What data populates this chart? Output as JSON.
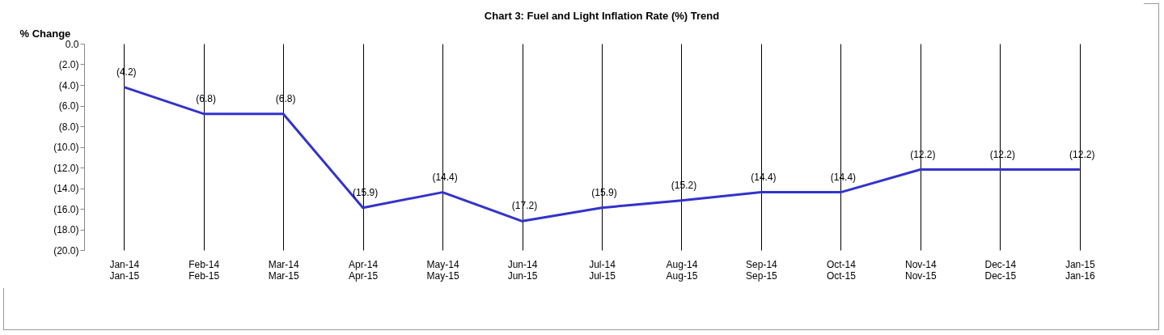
{
  "chart_data": {
    "type": "line",
    "title": "Chart 3: Fuel and Light Inflation Rate (%) Trend",
    "ylabel": "% Change",
    "categories": [
      "Jan-14\nJan-15",
      "Feb-14\nFeb-15",
      "Mar-14\nMar-15",
      "Apr-14\nApr-15",
      "May-14\nMay-15",
      "Jun-14\nJun-15",
      "Jul-14\nJul-15",
      "Aug-14\nAug-15",
      "Sep-14\nSep-15",
      "Oct-14\nOct-15",
      "Nov-14\nNov-15",
      "Dec-14\nDec-15",
      "Jan-15\nJan-16"
    ],
    "series": [
      {
        "color": "#3333cc",
        "values": [
          -4.2,
          -6.8,
          -6.8,
          -15.9,
          -14.4,
          -17.2,
          -15.9,
          -15.2,
          -14.4,
          -14.4,
          -12.2,
          -12.2,
          -12.2
        ],
        "value_labels": [
          "(4.2)",
          "(6.8)",
          "(6.8)",
          "(15.9)",
          "(14.4)",
          "(17.2)",
          "(15.9)",
          "(15.2)",
          "(14.4)",
          "(14.4)",
          "(12.2)",
          "(12.2)",
          "(12.2)"
        ]
      }
    ],
    "ylim": [
      -20,
      0
    ],
    "yticks": [
      {
        "value": 0,
        "label": "0.0"
      },
      {
        "value": -2,
        "label": "(2.0)"
      },
      {
        "value": -4,
        "label": "(4.0)"
      },
      {
        "value": -6,
        "label": "(6.0)"
      },
      {
        "value": -8,
        "label": "(8.0)"
      },
      {
        "value": -10,
        "label": "(10.0)"
      },
      {
        "value": -12,
        "label": "(12.0)"
      },
      {
        "value": -14,
        "label": "(14.0)"
      },
      {
        "value": -16,
        "label": "(16.0)"
      },
      {
        "value": -18,
        "label": "(18.0)"
      },
      {
        "value": -20,
        "label": "(20.0)"
      }
    ],
    "grid": "x",
    "marker": "none",
    "line_style": "solid"
  }
}
